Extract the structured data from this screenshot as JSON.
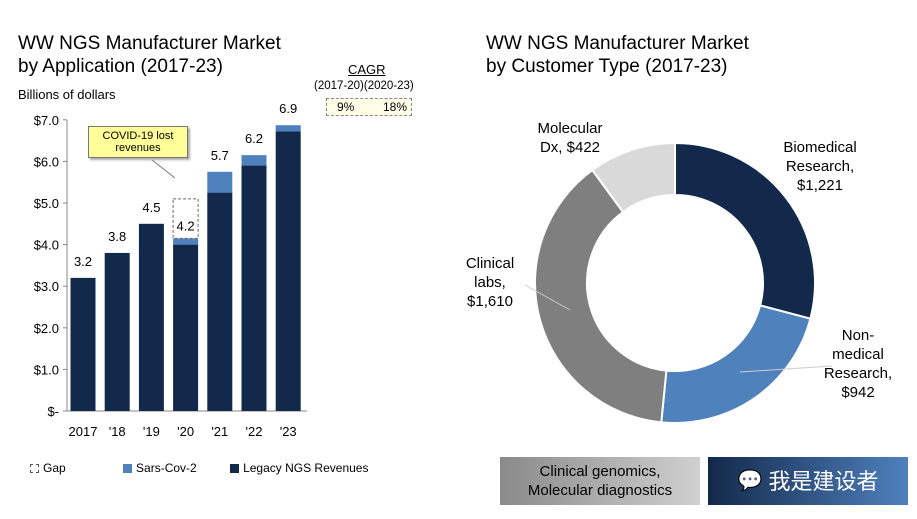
{
  "left_title": [
    "WW NGS Manufacturer Market",
    "by Application (2017-23)"
  ],
  "right_title": [
    "WW NGS Manufacturer Market",
    "by Customer Type (2017-23)"
  ],
  "cagr": {
    "title": "CAGR",
    "periods": "(2017-20)(2020-23)",
    "v1": "9%",
    "v2": "18%"
  },
  "callout": "COVID-19 lost revenues",
  "boxes": {
    "gray": [
      "Clinical genomics,",
      "Molecular diagnostics"
    ],
    "navy_watermark": "我是建设者"
  },
  "colors": {
    "legacy": "#13294b",
    "sars": "#4f81bd",
    "biomed": "#13294b",
    "nonmed": "#4f81bd",
    "clinical": "#7f7f7f",
    "moldx": "#d9d9d9"
  },
  "chart_data": [
    {
      "type": "bar",
      "title": "WW NGS Manufacturer Market by Application (2017-23)",
      "ylabel": "Billions of dollars",
      "ylim": [
        0,
        7
      ],
      "yticks": [
        "$-",
        "$1.0",
        "$2.0",
        "$3.0",
        "$4.0",
        "$5.0",
        "$6.0",
        "$7.0"
      ],
      "categories": [
        "2017",
        "'18",
        "'19",
        "'20",
        "'21",
        "'22",
        "'23"
      ],
      "series": [
        {
          "name": "Legacy NGS Revenues",
          "values": [
            3.2,
            3.8,
            4.5,
            4.0,
            5.25,
            5.9,
            6.72
          ]
        },
        {
          "name": "Sars-Cov-2",
          "values": [
            0,
            0,
            0,
            0.15,
            0.5,
            0.25,
            0.15
          ]
        },
        {
          "name": "Gap",
          "values": [
            0,
            0,
            0,
            0.95,
            0,
            0,
            0
          ]
        }
      ],
      "totals": [
        "3.2",
        "3.8",
        "4.5",
        "4.2",
        "5.7",
        "6.2",
        "6.9"
      ],
      "legend": [
        "Gap",
        "Sars-Cov-2",
        "Legacy NGS Revenues"
      ]
    },
    {
      "type": "pie",
      "title": "WW NGS Manufacturer Market by Customer Type (2017-23)",
      "slices": [
        {
          "label": [
            "Biomedical",
            "Research,",
            "$1,221"
          ],
          "value": 1221
        },
        {
          "label": [
            "Non-",
            "medical",
            "Research,",
            "$942"
          ],
          "value": 942
        },
        {
          "label": [
            "Clinical",
            "labs,",
            "$1,610"
          ],
          "value": 1610
        },
        {
          "label": [
            "Molecular",
            "Dx,  $422"
          ],
          "value": 422
        }
      ]
    }
  ]
}
